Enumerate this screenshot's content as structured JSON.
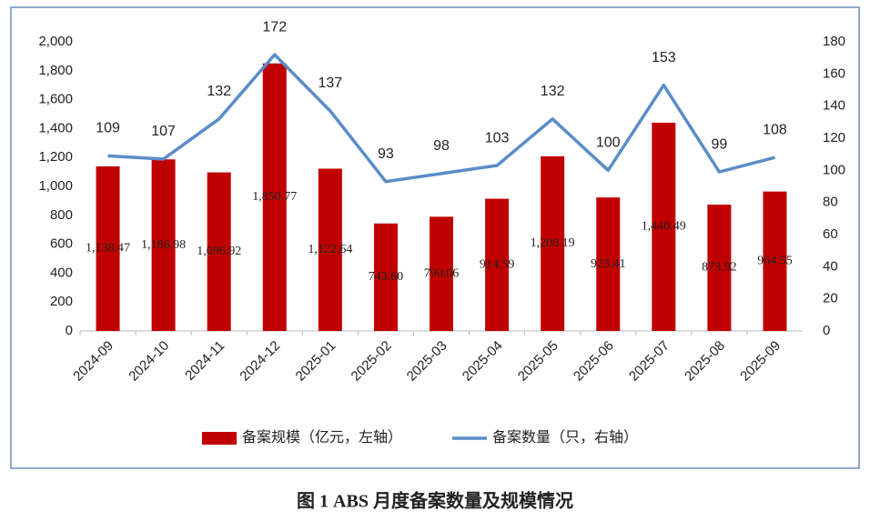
{
  "chart_data": {
    "type": "bar",
    "categories": [
      "2024-09",
      "2024-10",
      "2024-11",
      "2024-12",
      "2025-01",
      "2025-02",
      "2025-03",
      "2025-04",
      "2025-05",
      "2025-06",
      "2025-07",
      "2025-08",
      "2025-09"
    ],
    "series": [
      {
        "name": "备案规模（亿元，左轴）",
        "type": "bar",
        "color": "#c00000",
        "values": [
          1138.47,
          1186.98,
          1096.92,
          1850.77,
          1122.64,
          743.6,
          790.06,
          914.59,
          1208.19,
          923.41,
          1440.49,
          873.92,
          964.55
        ],
        "value_labels": [
          "1,138.47",
          "1,186.98",
          "1,096.92",
          "1,850.77",
          "1,122.64",
          "743.60",
          "790.06",
          "914.59",
          "1,208.19",
          "923.41",
          "1,440.49",
          "873.92",
          "964.55"
        ]
      },
      {
        "name": "备案数量（只，右轴）",
        "type": "line",
        "axis": "y2",
        "color": "#5b8cc8",
        "values": [
          109,
          107,
          132,
          172,
          137,
          93,
          98,
          103,
          132,
          100,
          153,
          99,
          108
        ]
      }
    ],
    "ylim": [
      0,
      2000
    ],
    "yticks": [
      0,
      200,
      400,
      600,
      800,
      {
        "value": 1000,
        "label": "1,000"
      },
      {
        "value": 1200,
        "label": "1,200"
      },
      {
        "value": 1400,
        "label": "1,400"
      },
      {
        "value": 1600,
        "label": "1,600"
      },
      {
        "value": 1800,
        "label": "1,800"
      },
      {
        "value": 2000,
        "label": "2,000"
      }
    ],
    "y2lim": [
      0,
      180
    ],
    "y2ticks": [
      0,
      20,
      40,
      60,
      80,
      100,
      120,
      140,
      160,
      180
    ],
    "legend": "bottom",
    "caption": "图 1   ABS 月度备案数量及规模情况"
  }
}
